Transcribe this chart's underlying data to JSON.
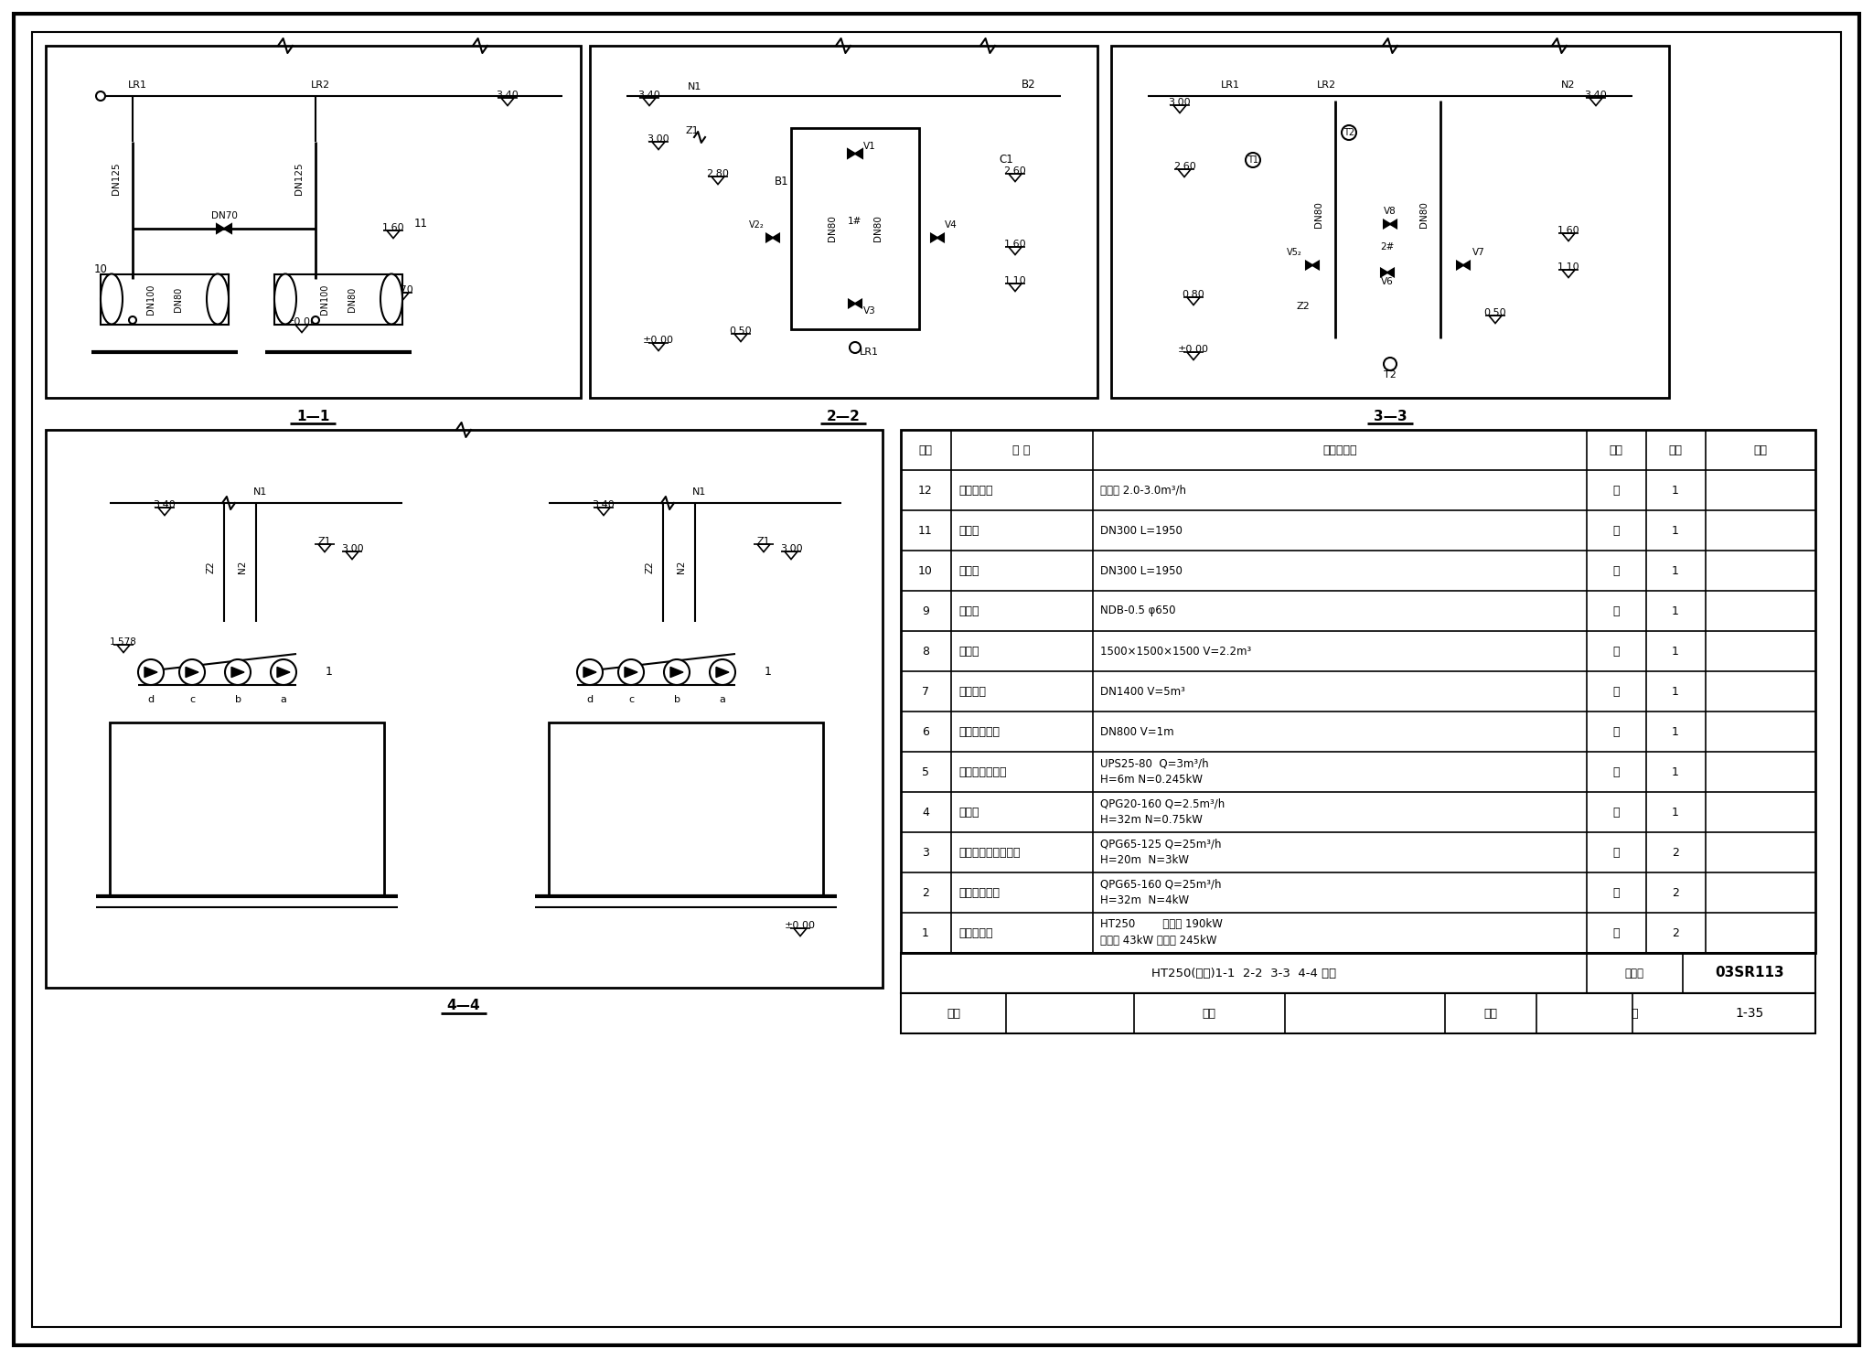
{
  "page": "1-35",
  "atlas_number": "03SR113",
  "bg_color": "#f5f5f0",
  "table_rows": [
    [
      "12",
      "自动软水器",
      "处理量 2.0-3.0m³/h",
      "台",
      "1",
      ""
    ],
    [
      "11",
      "集水器",
      "DN300 L=1950",
      "台",
      "1",
      ""
    ],
    [
      "10",
      "分水器",
      "DN300 L=1950",
      "台",
      "1",
      ""
    ],
    [
      "9",
      "定压羐",
      "NDB-0.5 φ650",
      "台",
      "1",
      ""
    ],
    [
      "8",
      "补水筒",
      "1500×1500×1500 V=2.2m³",
      "台",
      "1",
      ""
    ],
    [
      "7",
      "热水储羐",
      "DN1400 V=5m³",
      "台",
      "1",
      ""
    ],
    [
      "6",
      "容积式换热器",
      "DN800 V=1m",
      "台",
      "1",
      ""
    ],
    [
      "5",
      "生活热水循环泵",
      "UPS25-80  Q=3m³/h\nH=6m N=0.245kW",
      "台",
      "1",
      ""
    ],
    [
      "4",
      "补水泵",
      "QPG20-160 Q=2.5m³/h\nH=32m N=0.75kW",
      "台",
      "1",
      ""
    ],
    [
      "3",
      "能量提升系统循环泵",
      "QPG65-125 Q=25m³/h\nH=20m  N=3kW",
      "台",
      "2",
      ""
    ],
    [
      "2",
      "末端水循环泵",
      "QPG65-160 Q=25m³/h\nH=32m  N=4kW",
      "台",
      "2",
      ""
    ],
    [
      "1",
      "能量提升器",
      "HT250        制冷量 190kW\n电功率 43kW 制热量 245kW",
      "台",
      "2",
      ""
    ]
  ],
  "seq_col": "序号",
  "name_col": "名 称",
  "spec_col": "型号及规格",
  "unit_col": "单位",
  "qty_col": "数量",
  "note_col": "备注",
  "footer_text": "HT250(二台)1-1  2-2  3-3  4-4 剖面",
  "atlas_label": "图集号",
  "review_text": "审核",
  "check_text": "校对",
  "design_text": "设计",
  "page_label": "页"
}
